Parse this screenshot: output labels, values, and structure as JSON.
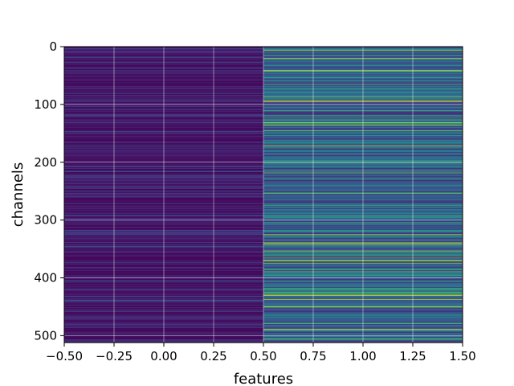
{
  "chart_data": {
    "type": "heatmap",
    "title": "",
    "xlabel": "features",
    "ylabel": "channels",
    "xlim": [
      -0.5,
      1.5
    ],
    "ylim": [
      512,
      0
    ],
    "y_inverted": true,
    "grid": true,
    "colormap": "viridis",
    "n_rows": 512,
    "n_cols": 2,
    "x_ticks": [
      "−0.50",
      "−0.25",
      "0.00",
      "0.25",
      "0.50",
      "0.75",
      "1.00",
      "1.25",
      "1.50"
    ],
    "x_tick_values": [
      -0.5,
      -0.25,
      0.0,
      0.25,
      0.5,
      0.75,
      1.0,
      1.25,
      1.5
    ],
    "y_ticks": [
      "0",
      "100",
      "200",
      "300",
      "400",
      "500"
    ],
    "y_tick_values": [
      0,
      100,
      200,
      300,
      400,
      500
    ],
    "columns": [
      {
        "x": 0,
        "value_range": [
          0.0,
          0.3
        ],
        "typical": 0.08
      },
      {
        "x": 1,
        "value_range": [
          0.0,
          1.0
        ],
        "typical": 0.35
      }
    ]
  },
  "colors": {
    "viridis_stops": [
      "#440154",
      "#482878",
      "#3e4989",
      "#31688e",
      "#26828e",
      "#1f9e89",
      "#35b779",
      "#6ece58",
      "#b5de2b",
      "#fde725"
    ],
    "grid": "#ffffff",
    "axis": "#000000"
  }
}
